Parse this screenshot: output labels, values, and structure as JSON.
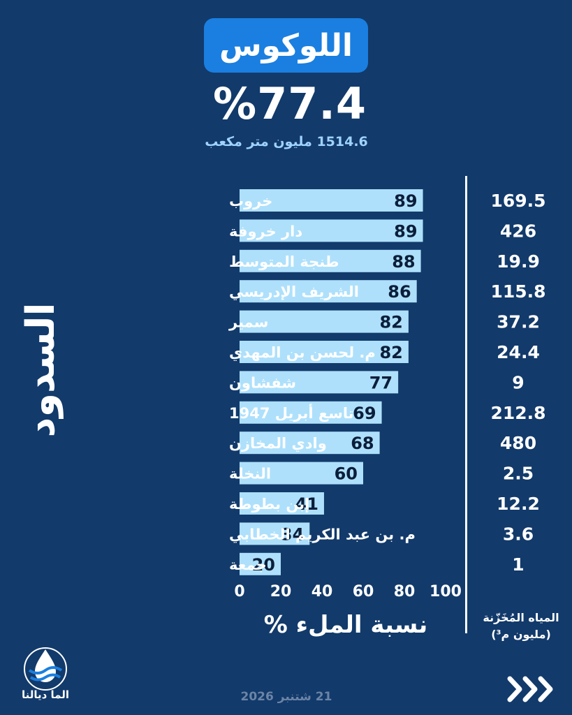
{
  "header": {
    "region": "اللوكوس",
    "fill_percent": "%77.4",
    "volume_text": "1514.6 مليون متر مكعب"
  },
  "labels": {
    "y_axis_title": "السدود",
    "x_axis_title": "نسبة الملء %",
    "storage_title_line1": "المياه المُخَزّنة",
    "storage_title_line2": "(مليون م³)"
  },
  "footer": {
    "brand": "الما ديالنا",
    "date": "21 شتنبر 2026"
  },
  "colors": {
    "background": "#123a6b",
    "bar": "#aee0fb",
    "badge": "#1a7fe0",
    "subtitle": "#9fd3ff"
  },
  "chart_data": {
    "type": "bar",
    "orientation": "horizontal",
    "categories": [
      "خروب",
      "دار خروفة",
      "طنجة المتوسط",
      "الشريف الإدريسي",
      "سمير",
      "م. لحسن بن المهدي",
      "شفشاون",
      "تاسع أبريل 1947",
      "وادي المخازن",
      "النخلة",
      "إبن بطوطة",
      "م. بن عبد الكريم الخطابي",
      "جمعة"
    ],
    "values": [
      89,
      89,
      88,
      86,
      82,
      82,
      77,
      69,
      68,
      60,
      41,
      34,
      20
    ],
    "stored": [
      "169.5",
      "426",
      "19.9",
      "115.8",
      "37.2",
      "24.4",
      "9",
      "212.8",
      "480",
      "2.5",
      "12.2",
      "3.6",
      "1"
    ],
    "xlim": [
      0,
      100
    ],
    "xticks": [
      0,
      20,
      40,
      60,
      80,
      100
    ],
    "xlabel": "نسبة الملء %",
    "ylabel": "السدود"
  }
}
